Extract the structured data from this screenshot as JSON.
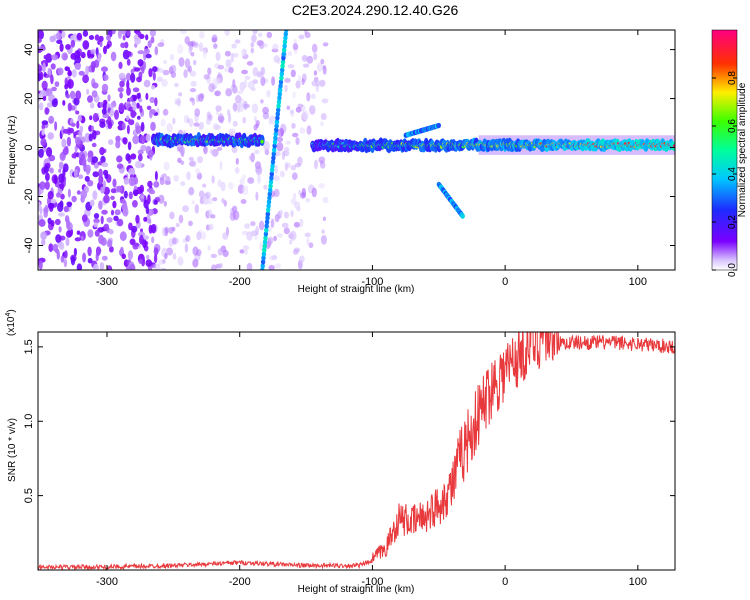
{
  "title": "C2E3.2024.290.12.40.G26",
  "chart_data": [
    {
      "type": "heatmap",
      "xlabel": "Height of straight line (km)",
      "ylabel": "Frequency (Hz)",
      "xlim": [
        -352,
        128
      ],
      "ylim": [
        -50,
        48
      ],
      "x_ticks": [
        -300,
        -200,
        -100,
        0,
        100
      ],
      "x_tick_labels": [
        "-300",
        "-200",
        "-100",
        "0",
        "100"
      ],
      "y_ticks": [
        -40,
        -20,
        0,
        20,
        40
      ],
      "y_tick_labels": [
        "-40",
        "-20",
        "0",
        "20",
        "40"
      ],
      "colorbar": {
        "label": "Normalized spectral amplitude",
        "range": [
          0,
          1
        ],
        "ticks": [
          0.0,
          0.2,
          0.4,
          0.6,
          0.8
        ],
        "tick_labels": [
          "0.0",
          "0.2",
          "0.4",
          "0.6",
          "0.8"
        ],
        "colormap": "rainbow (violet-blue-cyan-green-yellow-red-magenta)"
      },
      "colors": {
        "low": "#7f00ff",
        "mid": "#00ffc0",
        "high": "#ff2000"
      },
      "features": [
        {
          "name": "noise",
          "x_range": [
            -352,
            -135
          ],
          "frequency_range": [
            -50,
            48
          ]
        },
        {
          "name": "signal band",
          "x_range": [
            -265,
            -183
          ],
          "frequency": 3.0
        },
        {
          "name": "signal band",
          "x_range": [
            -145,
            128
          ],
          "frequency": 1.0
        },
        {
          "name": "oblique streak",
          "x_from": -183,
          "y_from": -50,
          "x_to": -165,
          "y_to": 48
        },
        {
          "name": "side branch",
          "x_from": -50,
          "y_from": -15,
          "x_to": -32,
          "y_to": -28
        },
        {
          "name": "side branch",
          "x_from": -75,
          "y_from": 5,
          "x_to": -50,
          "y_to": 9
        }
      ]
    },
    {
      "type": "line",
      "xlabel": "Height of straight line (km)",
      "ylabel": "SNR (10 * v/v)",
      "y_multiplier": "(x10",
      "y_multiplier_exp": "4",
      "y_multiplier_close": ")",
      "xlim": [
        -352,
        128
      ],
      "ylim": [
        0,
        1.6
      ],
      "x_ticks": [
        -300,
        -200,
        -100,
        0,
        100
      ],
      "x_tick_labels": [
        "-300",
        "-200",
        "-100",
        "0",
        "100"
      ],
      "y_ticks": [
        0.5,
        1.0,
        1.5
      ],
      "y_tick_labels": [
        "0.5",
        "1.0",
        "1.5"
      ],
      "color": "#e8393d",
      "x": [
        -352,
        -300,
        -250,
        -200,
        -150,
        -110,
        -100,
        -90,
        -80,
        -70,
        -60,
        -50,
        -40,
        -30,
        -20,
        -10,
        0,
        10,
        20,
        30,
        40,
        50,
        60,
        80,
        100,
        128
      ],
      "y": [
        0.02,
        0.02,
        0.03,
        0.05,
        0.03,
        0.03,
        0.06,
        0.12,
        0.3,
        0.28,
        0.32,
        0.38,
        0.5,
        0.75,
        0.95,
        1.15,
        1.25,
        1.35,
        1.45,
        1.5,
        1.52,
        1.53,
        1.53,
        1.53,
        1.52,
        1.5
      ]
    }
  ]
}
